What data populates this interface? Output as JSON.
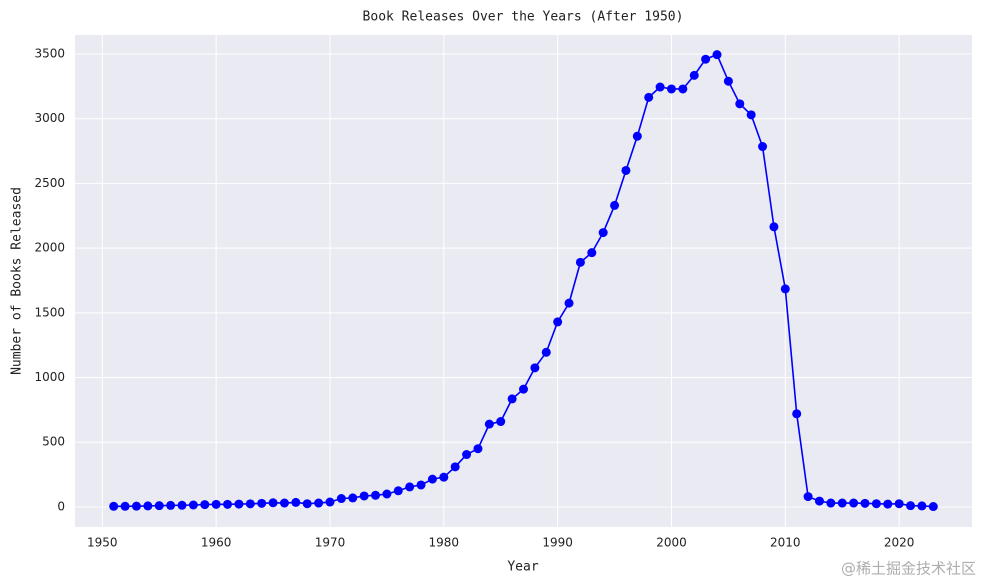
{
  "chart_data": {
    "type": "line",
    "title": "Book Releases Over the Years (After 1950)",
    "x_label": "Year",
    "y_label": "Number of Books Released",
    "watermark": "@稀土掘金技术社区",
    "x": [
      1951,
      1952,
      1953,
      1954,
      1955,
      1956,
      1957,
      1958,
      1959,
      1960,
      1961,
      1962,
      1963,
      1964,
      1965,
      1966,
      1967,
      1968,
      1969,
      1970,
      1971,
      1972,
      1973,
      1974,
      1975,
      1976,
      1977,
      1978,
      1979,
      1980,
      1981,
      1982,
      1983,
      1984,
      1985,
      1986,
      1987,
      1988,
      1989,
      1990,
      1991,
      1992,
      1993,
      1994,
      1995,
      1996,
      1997,
      1998,
      1999,
      2000,
      2001,
      2002,
      2003,
      2004,
      2005,
      2006,
      2007,
      2008,
      2009,
      2010,
      2011,
      2012,
      2013,
      2014,
      2015,
      2016,
      2017,
      2018,
      2019,
      2020,
      2021,
      2022,
      2023
    ],
    "series": [
      {
        "color": "#0000ff",
        "values": [
          5,
          5,
          6,
          8,
          10,
          12,
          13,
          15,
          18,
          20,
          20,
          22,
          24,
          28,
          32,
          30,
          35,
          25,
          30,
          38,
          65,
          70,
          85,
          90,
          100,
          125,
          155,
          170,
          215,
          230,
          310,
          405,
          450,
          640,
          660,
          835,
          910,
          1075,
          1195,
          1430,
          1575,
          1890,
          1965,
          2120,
          2330,
          2600,
          2865,
          3165,
          3245,
          3230,
          3230,
          3335,
          3460,
          3495,
          3290,
          3115,
          3030,
          2785,
          2165,
          1685,
          720,
          80,
          45,
          30,
          30,
          30,
          28,
          25,
          22,
          25,
          10,
          8,
          3
        ]
      }
    ],
    "xlim": [
      1947.6,
      2026.4
    ],
    "xticks": [
      1950,
      1960,
      1970,
      1980,
      1990,
      2000,
      2010,
      2020
    ],
    "ylim": [
      -155,
      3647
    ],
    "yticks": [
      0,
      500,
      1000,
      1500,
      2000,
      2500,
      3000,
      3500
    ],
    "grid": true,
    "background": "#eaeaf2"
  }
}
